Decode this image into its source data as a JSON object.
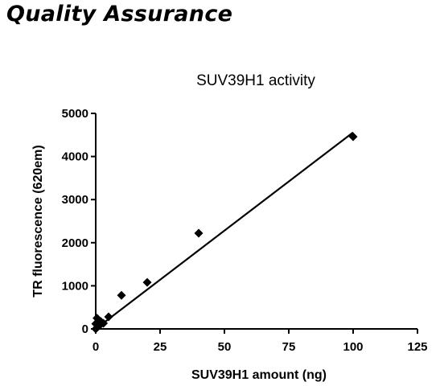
{
  "page": {
    "heading": "Quality Assurance"
  },
  "chart_data": {
    "type": "scatter",
    "title": "SUV39H1 activity",
    "xlabel": "SUV39H1 amount (ng)",
    "ylabel": "TR fluorescence (620em)",
    "xlim": [
      0,
      125
    ],
    "ylim": [
      0,
      5000
    ],
    "xticks": [
      0,
      25,
      50,
      75,
      100,
      125
    ],
    "yticks": [
      0,
      1000,
      2000,
      3000,
      4000,
      5000
    ],
    "xtick_labels": [
      "0",
      "25",
      "50",
      "75",
      "100",
      "125"
    ],
    "ytick_labels": [
      "0",
      "1000",
      "2000",
      "3000",
      "4000",
      "5000"
    ],
    "grid": false,
    "marker": "diamond",
    "colors": {
      "points": "#000000",
      "line": "#000000",
      "axes": "#000000"
    },
    "series": [
      {
        "x": [
          0,
          0,
          0.5,
          1,
          1.5,
          2,
          3,
          5,
          10,
          20,
          40,
          100
        ],
        "y": [
          0,
          120,
          250,
          60,
          80,
          170,
          130,
          280,
          780,
          1080,
          2220,
          4460
        ]
      }
    ],
    "fit_line": {
      "x": [
        0,
        100
      ],
      "y": [
        0,
        4560
      ]
    }
  }
}
